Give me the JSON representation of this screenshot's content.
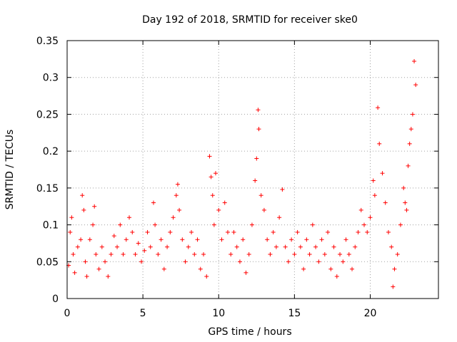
{
  "chart_data": {
    "type": "scatter",
    "title": "Day 192 of 2018, SRMTID for receiver ske0",
    "xlabel": "GPS time / hours",
    "ylabel": "SRMTID / TECUs",
    "xlim": [
      0,
      24.5
    ],
    "ylim": [
      0,
      0.35
    ],
    "xticks": [
      0,
      5,
      10,
      15,
      20
    ],
    "xtick_labels": [
      "0",
      "5",
      "10",
      "15",
      "20"
    ],
    "yticks": [
      0,
      0.05,
      0.1,
      0.15,
      0.2,
      0.25,
      0.3,
      0.35
    ],
    "ytick_labels": [
      "0",
      "0.05",
      "0.1",
      "0.15",
      "0.2",
      "0.25",
      "0.3",
      "0.35"
    ],
    "grid": true,
    "marker": "+",
    "marker_color": "#ff0000",
    "series": [
      {
        "name": "SRMTID",
        "points": [
          [
            0.1,
            0.045
          ],
          [
            0.2,
            0.09
          ],
          [
            0.3,
            0.11
          ],
          [
            0.4,
            0.06
          ],
          [
            0.5,
            0.035
          ],
          [
            0.7,
            0.07
          ],
          [
            0.9,
            0.08
          ],
          [
            1.0,
            0.14
          ],
          [
            1.1,
            0.12
          ],
          [
            1.2,
            0.05
          ],
          [
            1.3,
            0.03
          ],
          [
            1.5,
            0.08
          ],
          [
            1.7,
            0.1
          ],
          [
            1.8,
            0.125
          ],
          [
            1.9,
            0.06
          ],
          [
            2.1,
            0.04
          ],
          [
            2.3,
            0.07
          ],
          [
            2.5,
            0.05
          ],
          [
            2.7,
            0.03
          ],
          [
            2.9,
            0.06
          ],
          [
            3.1,
            0.085
          ],
          [
            3.3,
            0.07
          ],
          [
            3.5,
            0.1
          ],
          [
            3.7,
            0.06
          ],
          [
            3.9,
            0.08
          ],
          [
            4.1,
            0.11
          ],
          [
            4.3,
            0.09
          ],
          [
            4.5,
            0.06
          ],
          [
            4.7,
            0.075
          ],
          [
            4.9,
            0.05
          ],
          [
            5.1,
            0.065
          ],
          [
            5.3,
            0.09
          ],
          [
            5.5,
            0.07
          ],
          [
            5.7,
            0.13
          ],
          [
            5.8,
            0.1
          ],
          [
            6.0,
            0.06
          ],
          [
            6.2,
            0.08
          ],
          [
            6.4,
            0.04
          ],
          [
            6.6,
            0.07
          ],
          [
            6.8,
            0.09
          ],
          [
            7.0,
            0.11
          ],
          [
            7.2,
            0.14
          ],
          [
            7.3,
            0.155
          ],
          [
            7.4,
            0.12
          ],
          [
            7.6,
            0.08
          ],
          [
            7.8,
            0.05
          ],
          [
            8.0,
            0.07
          ],
          [
            8.2,
            0.09
          ],
          [
            8.4,
            0.06
          ],
          [
            8.6,
            0.08
          ],
          [
            8.8,
            0.04
          ],
          [
            9.0,
            0.06
          ],
          [
            9.2,
            0.03
          ],
          [
            9.4,
            0.193
          ],
          [
            9.5,
            0.165
          ],
          [
            9.6,
            0.14
          ],
          [
            9.7,
            0.1
          ],
          [
            9.8,
            0.17
          ],
          [
            10.0,
            0.12
          ],
          [
            10.2,
            0.08
          ],
          [
            10.4,
            0.13
          ],
          [
            10.6,
            0.09
          ],
          [
            10.8,
            0.06
          ],
          [
            11.0,
            0.09
          ],
          [
            11.2,
            0.07
          ],
          [
            11.4,
            0.05
          ],
          [
            11.6,
            0.08
          ],
          [
            11.8,
            0.035
          ],
          [
            12.0,
            0.06
          ],
          [
            12.2,
            0.1
          ],
          [
            12.4,
            0.16
          ],
          [
            12.5,
            0.19
          ],
          [
            12.6,
            0.256
          ],
          [
            12.65,
            0.23
          ],
          [
            12.8,
            0.14
          ],
          [
            13.0,
            0.12
          ],
          [
            13.2,
            0.08
          ],
          [
            13.4,
            0.06
          ],
          [
            13.6,
            0.09
          ],
          [
            13.8,
            0.07
          ],
          [
            14.0,
            0.11
          ],
          [
            14.2,
            0.148
          ],
          [
            14.4,
            0.07
          ],
          [
            14.6,
            0.05
          ],
          [
            14.8,
            0.08
          ],
          [
            15.0,
            0.06
          ],
          [
            15.2,
            0.09
          ],
          [
            15.4,
            0.07
          ],
          [
            15.6,
            0.04
          ],
          [
            15.8,
            0.08
          ],
          [
            16.0,
            0.06
          ],
          [
            16.2,
            0.1
          ],
          [
            16.4,
            0.07
          ],
          [
            16.6,
            0.05
          ],
          [
            16.8,
            0.08
          ],
          [
            17.0,
            0.06
          ],
          [
            17.2,
            0.09
          ],
          [
            17.4,
            0.04
          ],
          [
            17.6,
            0.07
          ],
          [
            17.8,
            0.03
          ],
          [
            18.0,
            0.06
          ],
          [
            18.2,
            0.05
          ],
          [
            18.4,
            0.08
          ],
          [
            18.6,
            0.06
          ],
          [
            18.8,
            0.04
          ],
          [
            19.0,
            0.07
          ],
          [
            19.2,
            0.09
          ],
          [
            19.4,
            0.12
          ],
          [
            19.6,
            0.1
          ],
          [
            19.8,
            0.09
          ],
          [
            20.0,
            0.11
          ],
          [
            20.2,
            0.16
          ],
          [
            20.3,
            0.14
          ],
          [
            20.5,
            0.259
          ],
          [
            20.6,
            0.21
          ],
          [
            20.8,
            0.17
          ],
          [
            21.0,
            0.13
          ],
          [
            21.2,
            0.09
          ],
          [
            21.4,
            0.07
          ],
          [
            21.5,
            0.016
          ],
          [
            21.6,
            0.04
          ],
          [
            21.8,
            0.06
          ],
          [
            22.0,
            0.1
          ],
          [
            22.2,
            0.15
          ],
          [
            22.3,
            0.13
          ],
          [
            22.4,
            0.12
          ],
          [
            22.5,
            0.18
          ],
          [
            22.6,
            0.21
          ],
          [
            22.7,
            0.23
          ],
          [
            22.8,
            0.25
          ],
          [
            22.9,
            0.322
          ],
          [
            23.0,
            0.29
          ]
        ]
      }
    ]
  }
}
